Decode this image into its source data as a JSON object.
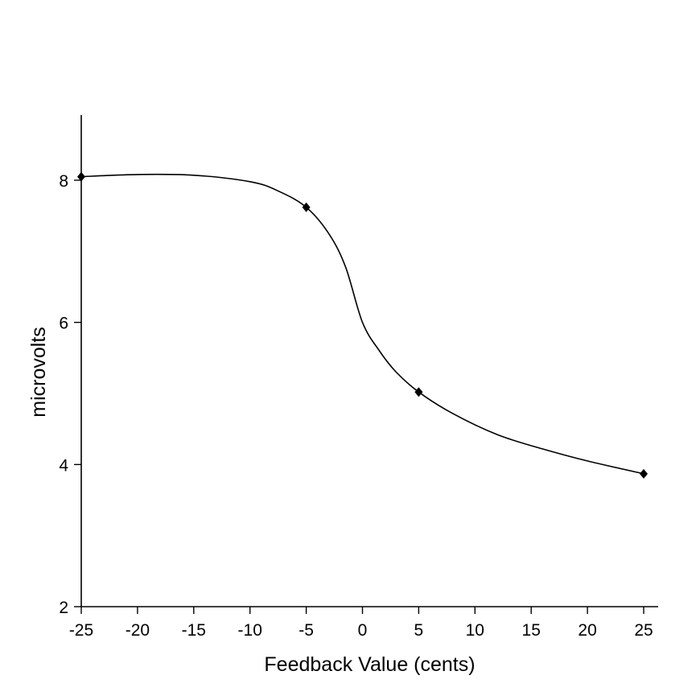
{
  "chart_data": {
    "type": "line",
    "title": "",
    "xlabel": "Feedback Value (cents)",
    "ylabel": "microvolts",
    "xlim": [
      -25,
      26
    ],
    "ylim": [
      2,
      8.9
    ],
    "x_ticks": [
      -25,
      -20,
      -15,
      -10,
      -5,
      0,
      5,
      10,
      15,
      20,
      25
    ],
    "x_tick_labels": [
      "-25",
      "-20",
      "-15",
      "-10",
      "-5",
      "0",
      "5",
      "10",
      "15",
      "20",
      "25"
    ],
    "y_ticks": [
      2,
      4,
      6,
      8
    ],
    "y_tick_labels": [
      "2",
      "4",
      "6",
      "8"
    ],
    "grid": false,
    "series": [
      {
        "x": [
          -25,
          -5,
          5,
          25
        ],
        "y": [
          8.05,
          7.62,
          5.02,
          3.87
        ],
        "marker": "diamond",
        "color": "#000000"
      }
    ],
    "curve": {
      "x": [
        -25,
        -20,
        -15,
        -10,
        -7.5,
        -5,
        -3,
        -1.5,
        0,
        1.5,
        3,
        5,
        8,
        12,
        16,
        20,
        25
      ],
      "y": [
        8.05,
        8.08,
        8.07,
        7.98,
        7.85,
        7.62,
        7.25,
        6.78,
        6.0,
        5.6,
        5.3,
        5.02,
        4.72,
        4.42,
        4.22,
        4.05,
        3.87
      ]
    }
  }
}
